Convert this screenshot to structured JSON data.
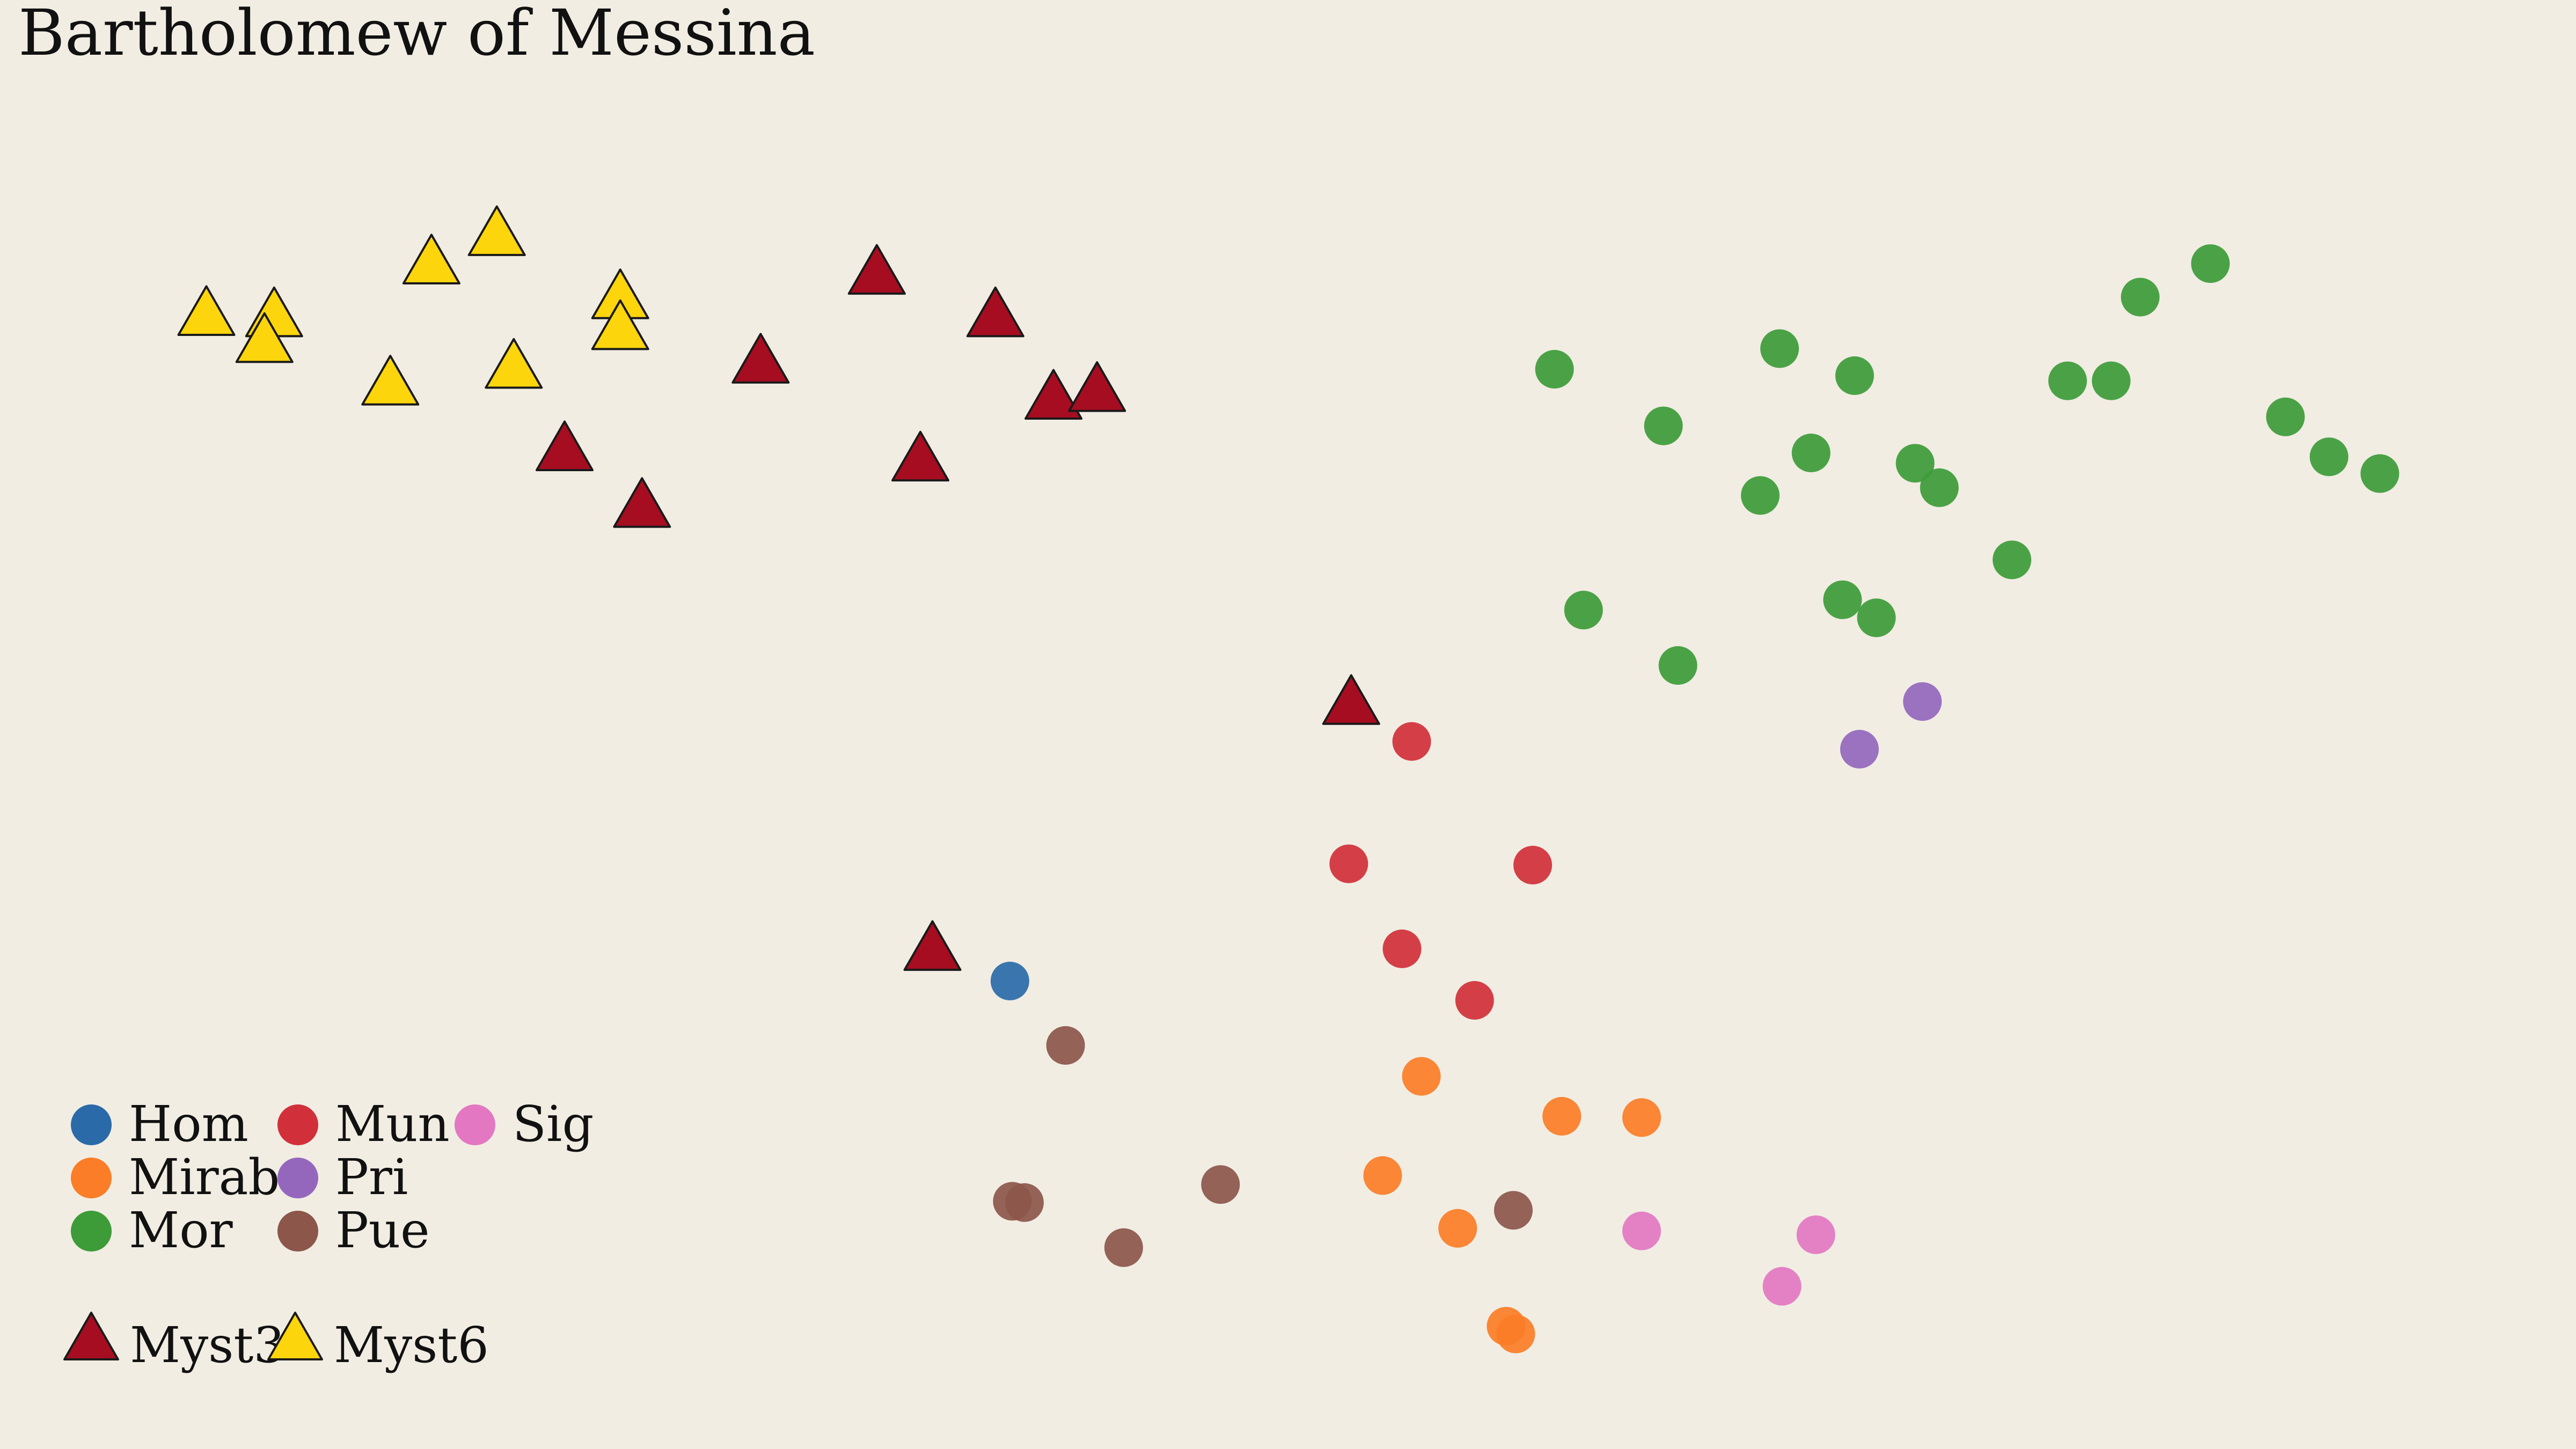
{
  "chart_data": {
    "type": "scatter",
    "title": "Bartholomew of Messina",
    "xlabel": "",
    "ylabel": "",
    "xlim": [
      0,
      100
    ],
    "ylim": [
      0,
      100
    ],
    "grid": false,
    "axes_visible": false,
    "legend_position": "bottom-left",
    "series": [
      {
        "name": "Hom",
        "marker": "circle",
        "color": "#2b6aa8",
        "points": [
          [
            38.4,
            33.0
          ]
        ]
      },
      {
        "name": "Mirab",
        "marker": "circle",
        "color": "#fb7d27",
        "points": [
          [
            55.4,
            25.6
          ],
          [
            61.2,
            22.5
          ],
          [
            64.5,
            22.4
          ],
          [
            53.8,
            17.9
          ],
          [
            56.9,
            13.8
          ],
          [
            58.9,
            6.2
          ],
          [
            59.3,
            5.6
          ]
        ]
      },
      {
        "name": "Mor",
        "marker": "circle",
        "color": "#3d9b38",
        "points": [
          [
            60.9,
            80.5
          ],
          [
            65.4,
            76.1
          ],
          [
            70.2,
            82.1
          ],
          [
            73.3,
            80.0
          ],
          [
            71.5,
            74.0
          ],
          [
            69.4,
            70.7
          ],
          [
            75.8,
            73.2
          ],
          [
            76.8,
            71.3
          ],
          [
            79.8,
            65.7
          ],
          [
            82.1,
            79.6
          ],
          [
            83.9,
            79.6
          ],
          [
            85.1,
            86.1
          ],
          [
            88.0,
            88.7
          ],
          [
            91.1,
            76.8
          ],
          [
            92.9,
            73.7
          ],
          [
            95.0,
            72.4
          ],
          [
            62.1,
            61.8
          ],
          [
            66.0,
            57.5
          ],
          [
            72.8,
            62.6
          ],
          [
            74.2,
            61.2
          ]
        ]
      },
      {
        "name": "Mun",
        "marker": "circle",
        "color": "#d1303a",
        "points": [
          [
            55.0,
            51.6
          ],
          [
            52.4,
            42.1
          ],
          [
            60.0,
            42.0
          ],
          [
            54.6,
            35.5
          ],
          [
            57.6,
            31.5
          ]
        ]
      },
      {
        "name": "Pri",
        "marker": "circle",
        "color": "#9467bd",
        "points": [
          [
            76.1,
            54.7
          ],
          [
            73.5,
            51.0
          ]
        ]
      },
      {
        "name": "Pue",
        "marker": "circle",
        "color": "#8c564b",
        "points": [
          [
            40.7,
            28.0
          ],
          [
            47.1,
            17.2
          ],
          [
            38.5,
            15.9
          ],
          [
            39.0,
            15.8
          ],
          [
            43.1,
            12.3
          ],
          [
            59.2,
            15.2
          ]
        ]
      },
      {
        "name": "Sig",
        "marker": "circle",
        "color": "#e377c2",
        "points": [
          [
            64.5,
            13.6
          ],
          [
            71.7,
            13.3
          ],
          [
            70.3,
            9.3
          ]
        ]
      },
      {
        "name": "Myst3",
        "marker": "triangle",
        "color": "#a60d21",
        "points": [
          [
            32.9,
            87.8
          ],
          [
            37.8,
            84.5
          ],
          [
            28.1,
            80.9
          ],
          [
            40.2,
            78.1
          ],
          [
            42.0,
            78.7
          ],
          [
            20.0,
            74.1
          ],
          [
            34.7,
            73.3
          ],
          [
            23.2,
            69.7
          ],
          [
            52.5,
            54.4
          ],
          [
            35.2,
            35.3
          ]
        ]
      },
      {
        "name": "Myst6",
        "marker": "triangle",
        "color": "#fdd50c",
        "points": [
          [
            5.2,
            84.6
          ],
          [
            8.0,
            84.5
          ],
          [
            7.6,
            82.5
          ],
          [
            14.5,
            88.6
          ],
          [
            17.2,
            90.8
          ],
          [
            22.3,
            85.9
          ],
          [
            22.3,
            83.5
          ],
          [
            12.8,
            79.2
          ],
          [
            17.9,
            80.5
          ]
        ]
      }
    ]
  }
}
